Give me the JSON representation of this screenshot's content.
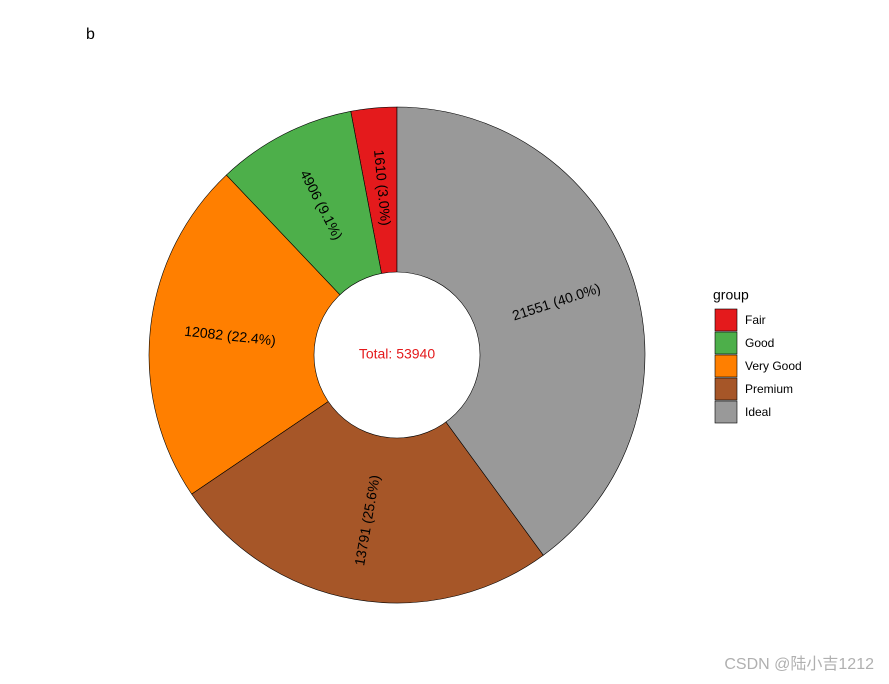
{
  "chart_data": {
    "type": "donut",
    "tag": "b",
    "categories": [
      "Fair",
      "Good",
      "Very Good",
      "Premium",
      "Ideal"
    ],
    "values": [
      1610,
      4906,
      12082,
      13791,
      21551
    ],
    "value_labels": [
      "1610 (3.0%)",
      "4906 (9.1%)",
      "12082 (22.4%)",
      "13791 (25.6%)",
      "21551 (40.0%)"
    ],
    "colors": [
      "#e41a1c",
      "#4daf4a",
      "#ff7f00",
      "#a65628",
      "#999999"
    ],
    "center_label": "Total: 53940",
    "legend_title": "group",
    "legend_position": "right"
  },
  "watermark": "CSDN @陆小吉1212"
}
